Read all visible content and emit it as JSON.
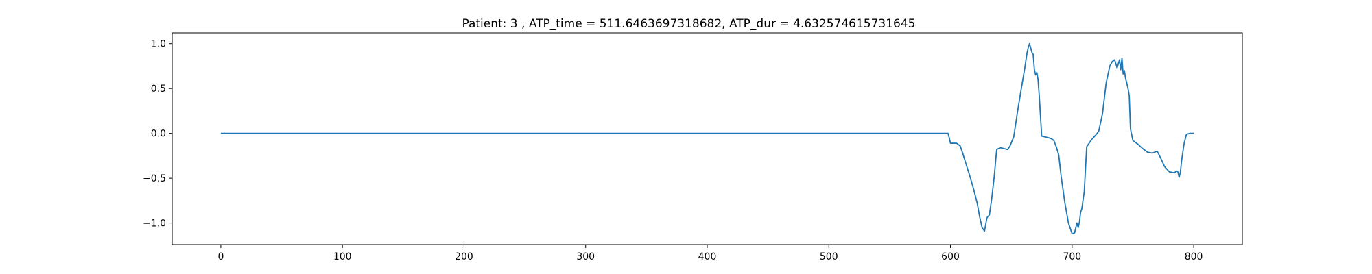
{
  "chart_data": {
    "type": "line",
    "title": "Patient: 3 , ATP_time = 511.6463697318682, ATP_dur = 4.632574615731645",
    "xlabel": "",
    "ylabel": "",
    "xlim": [
      -40,
      840
    ],
    "ylim": [
      -1.24,
      1.12
    ],
    "xticks": [
      0,
      100,
      200,
      300,
      400,
      500,
      600,
      700,
      800
    ],
    "yticks": [
      1.0,
      0.5,
      0.0,
      -0.5,
      -1.0
    ],
    "xtick_labels": [
      "0",
      "100",
      "200",
      "300",
      "400",
      "500",
      "600",
      "700",
      "800"
    ],
    "ytick_labels": [
      "1.0",
      "0.5",
      "0.0",
      "−0.5",
      "−1.0"
    ],
    "grid": false,
    "line_color": "#1f77b4",
    "series": [
      {
        "x": [
          0,
          100,
          200,
          300,
          400,
          500,
          598,
          599,
          600,
          605,
          608,
          610,
          613,
          616,
          619,
          622,
          624,
          626,
          628,
          630,
          632,
          634,
          636,
          638,
          641,
          644,
          647,
          649,
          652,
          655,
          658,
          661,
          663,
          664,
          665,
          666,
          667,
          668,
          669,
          670,
          671,
          672,
          673,
          675,
          678,
          681,
          683,
          685,
          687,
          689,
          691,
          694,
          697,
          700,
          702,
          704,
          705,
          706,
          707,
          708,
          710,
          712,
          714,
          716,
          718,
          720,
          722,
          725,
          728,
          731,
          733,
          735,
          737,
          739,
          740,
          741,
          742,
          743,
          744,
          745,
          746,
          747,
          748,
          750,
          754,
          758,
          762,
          766,
          770,
          773,
          776,
          780,
          784,
          786,
          787,
          788,
          789,
          790,
          792,
          794,
          797,
          800
        ],
        "y": [
          0,
          0,
          0,
          0,
          0,
          0,
          0,
          -0.05,
          -0.11,
          -0.11,
          -0.14,
          -0.22,
          -0.35,
          -0.48,
          -0.62,
          -0.78,
          -0.93,
          -1.05,
          -1.09,
          -0.94,
          -0.91,
          -0.72,
          -0.48,
          -0.18,
          -0.16,
          -0.17,
          -0.18,
          -0.14,
          -0.04,
          0.23,
          0.48,
          0.72,
          0.9,
          0.96,
          1.0,
          0.95,
          0.9,
          0.88,
          0.71,
          0.65,
          0.68,
          0.6,
          0.42,
          -0.03,
          -0.04,
          -0.05,
          -0.06,
          -0.08,
          -0.15,
          -0.24,
          -0.48,
          -0.77,
          -1.0,
          -1.12,
          -1.11,
          -1.0,
          -1.05,
          -0.99,
          -0.88,
          -0.84,
          -0.65,
          -0.15,
          -0.11,
          -0.07,
          -0.04,
          -0.01,
          0.03,
          0.22,
          0.56,
          0.75,
          0.8,
          0.82,
          0.73,
          0.82,
          0.71,
          0.84,
          0.66,
          0.7,
          0.61,
          0.56,
          0.5,
          0.42,
          0.05,
          -0.08,
          -0.12,
          -0.17,
          -0.21,
          -0.22,
          -0.2,
          -0.28,
          -0.37,
          -0.43,
          -0.44,
          -0.42,
          -0.43,
          -0.49,
          -0.44,
          -0.31,
          -0.12,
          -0.01,
          0,
          0
        ]
      }
    ]
  }
}
